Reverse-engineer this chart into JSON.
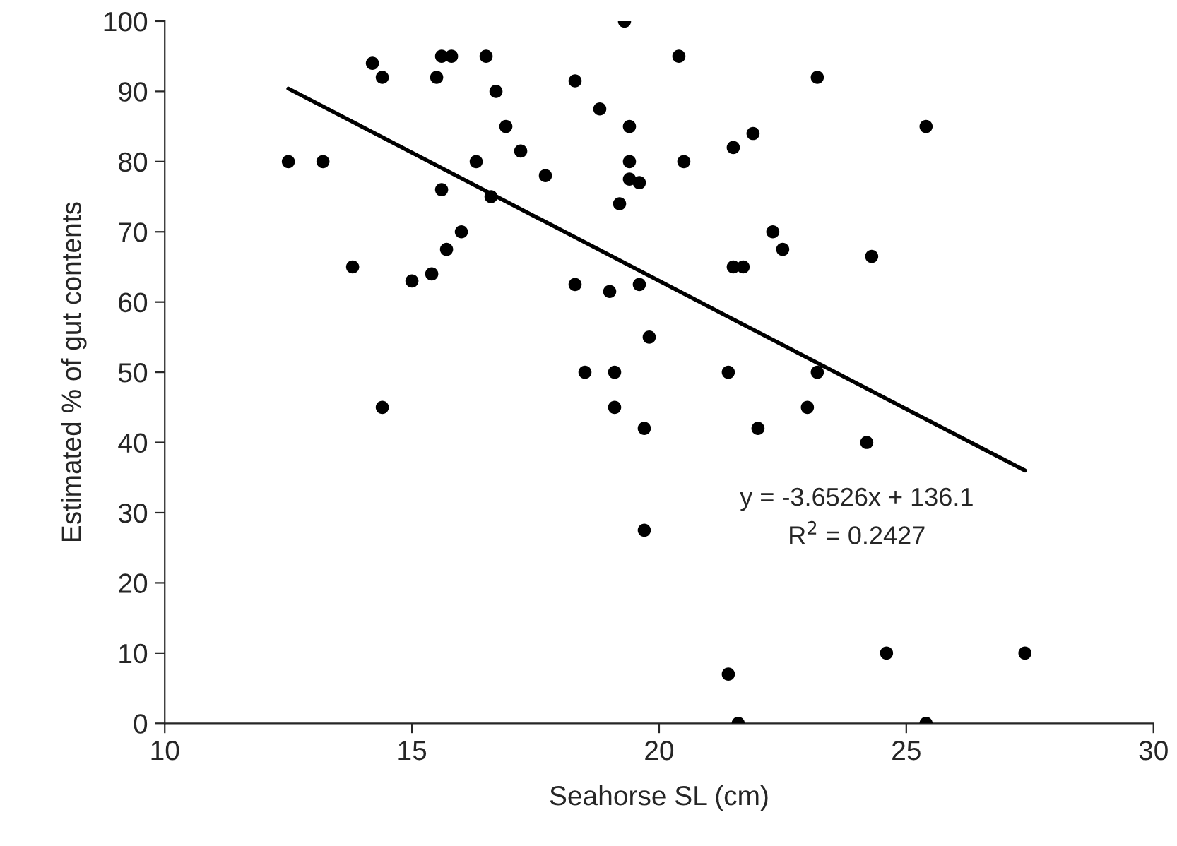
{
  "chart_data": {
    "type": "scatter",
    "xlabel": "Seahorse SL (cm)",
    "ylabel": "Estimated % of gut contents",
    "xlim": [
      10,
      30
    ],
    "xticks": [
      10,
      15,
      20,
      25,
      30
    ],
    "ylim": [
      0,
      100
    ],
    "yticks": [
      0,
      10,
      20,
      30,
      40,
      50,
      60,
      70,
      80,
      90,
      100
    ],
    "grid": false,
    "legend": false,
    "marker": "circle",
    "series": [
      {
        "color": "#000000",
        "x": [
          12.5,
          13.2,
          13.8,
          14.2,
          14.4,
          14.4,
          15.0,
          15.4,
          15.5,
          15.6,
          15.6,
          15.8,
          15.7,
          16.0,
          16.3,
          16.5,
          16.6,
          16.7,
          16.9,
          17.2,
          17.7,
          18.3,
          18.3,
          18.5,
          18.8,
          19.0,
          19.1,
          19.1,
          19.2,
          19.3,
          19.4,
          19.4,
          19.4,
          19.6,
          19.6,
          19.7,
          19.7,
          19.8,
          20.4,
          20.5,
          21.4,
          21.4,
          21.5,
          21.5,
          21.6,
          21.7,
          21.9,
          22.0,
          22.3,
          22.5,
          23.0,
          23.2,
          23.2,
          24.2,
          24.3,
          24.6,
          25.4,
          25.4,
          27.4
        ],
        "values": [
          80,
          80,
          65,
          94,
          92,
          45,
          63,
          64,
          92,
          76,
          95,
          95,
          67.5,
          70,
          80,
          95,
          75,
          90,
          85,
          81.5,
          78,
          91.5,
          62.5,
          50,
          87.5,
          61.5,
          50,
          45,
          74,
          100,
          85,
          80,
          77.5,
          77,
          62.5,
          42,
          27.5,
          55,
          95,
          80,
          50,
          7,
          82,
          65,
          0,
          65,
          84,
          42,
          70,
          67.5,
          45,
          92,
          50,
          40,
          66.5,
          10,
          85,
          0,
          10
        ]
      },
      {
        "type": "line",
        "color": "#000000",
        "line_style": "solid",
        "marker": "none",
        "x": [
          12.5,
          27.4
        ],
        "values": [
          90.4,
          36.0
        ]
      }
    ],
    "annotations": [
      "y = -3.6526x + 136.1",
      "R$^{2}$ = 0.2427"
    ]
  }
}
